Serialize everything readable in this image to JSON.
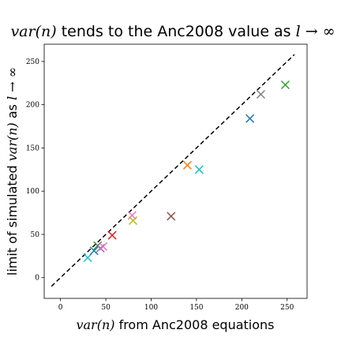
{
  "chart_data": {
    "type": "scatter",
    "title": {
      "math_prefix": "var(n)",
      "text": " tends to the Anc2008 value as ",
      "math_suffix": "l → ∞"
    },
    "xlabel": {
      "math_prefix": "var(n)",
      "text": " from Anc2008 equations"
    },
    "ylabel": {
      "text_prefix": "limit of simulated ",
      "math_mid": "var(n)",
      "text_mid": " as ",
      "math_suffix": "l → ∞"
    },
    "xlim": [
      -18,
      272
    ],
    "ylim": [
      -24,
      270
    ],
    "xticks": [
      0,
      50,
      100,
      150,
      200,
      250
    ],
    "yticks": [
      0,
      50,
      100,
      150,
      200,
      250
    ],
    "reference_line": {
      "x": [
        -10,
        258
      ],
      "y": [
        -10,
        258
      ],
      "style": "dashed",
      "color": "#000000"
    },
    "marker": "x",
    "points": [
      {
        "x": 30,
        "y": 23,
        "color": "#17becf"
      },
      {
        "x": 37,
        "y": 31,
        "color": "#1f77b4"
      },
      {
        "x": 41,
        "y": 37,
        "color": "#2ca02c"
      },
      {
        "x": 44,
        "y": 34,
        "color": "#9467bd"
      },
      {
        "x": 47,
        "y": 36,
        "color": "#e377c2"
      },
      {
        "x": 57,
        "y": 49,
        "color": "#d62728"
      },
      {
        "x": 79,
        "y": 72,
        "color": "#e377c2"
      },
      {
        "x": 80,
        "y": 66,
        "color": "#bcbd22"
      },
      {
        "x": 122,
        "y": 71,
        "color": "#8c564b"
      },
      {
        "x": 140,
        "y": 130,
        "color": "#ff7f0e"
      },
      {
        "x": 153,
        "y": 125,
        "color": "#17becf"
      },
      {
        "x": 209,
        "y": 184,
        "color": "#1f77b4"
      },
      {
        "x": 221,
        "y": 212,
        "color": "#7f7f7f"
      },
      {
        "x": 248,
        "y": 223,
        "color": "#2ca02c"
      }
    ]
  }
}
